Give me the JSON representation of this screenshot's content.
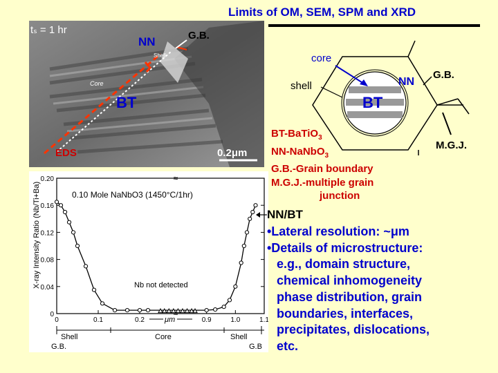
{
  "title": "Limits of OM, SEM, SPM and XRD",
  "micrograph": {
    "ts_label": "tₛ = 1 hr",
    "nn_label": "NN",
    "gb_label": "G.B.",
    "shell_label": "Shell",
    "core_label": "Core",
    "bt_label": "BT",
    "eds_label": "EDS",
    "scale_label": "0.2μm"
  },
  "schematic": {
    "core_label": "core",
    "shell_label": "shell",
    "nn_label": "NN",
    "gb_label": "G.B.",
    "bt_label": "BT",
    "mgj_label": "M.G.J."
  },
  "legend": {
    "line1_main": "BT-BaTiO",
    "line1_sub": "3",
    "line2_main": "NN-NaNbO",
    "line2_sub": "3",
    "line3": "G.B.-Grain boundary",
    "line4": "M.G.J.-multiple grain",
    "line5": "junction"
  },
  "bullets": {
    "heading": "NN/BT",
    "b1": "•Lateral resolution: ~μm",
    "b2": "•Details of microstructure:",
    "b2_lines": [
      "e.g., domain structure,",
      "chemical inhomogeneity",
      "phase distribution, grain",
      "boundaries, interfaces,",
      "precipitates, dislocations,",
      "etc."
    ]
  },
  "chart_data": {
    "type": "scatter",
    "title": "0.10 Mole NaNbO3 (1450°C/1hr)",
    "ylabel": "X-ray Intensity Ratio (Nb/Ti+Ba)",
    "xlabel": "μm",
    "annotation": "Nb not detected",
    "ylim": [
      0,
      0.2
    ],
    "yticks": [
      "0",
      "0.04",
      "0.08",
      "0.12",
      "0.16",
      "0.20"
    ],
    "xticks": [
      "0",
      "0.1",
      "0.2",
      "0.9",
      "1.0",
      "1.1"
    ],
    "bottom_labels": {
      "left_gb": "G.B.",
      "left_shell": "Shell",
      "core": "Core",
      "right_shell": "Shell",
      "right_gb": "G.B"
    },
    "series": [
      {
        "marker": "circle",
        "x": [
          0.0,
          0.01,
          0.02,
          0.03,
          0.04,
          0.05,
          0.07,
          0.09,
          0.11,
          0.14,
          0.17,
          0.2,
          0.22,
          0.9,
          0.93,
          0.96,
          0.98,
          1.0,
          1.02,
          1.03,
          1.04,
          1.05,
          1.06,
          1.07
        ],
        "y": [
          0.165,
          0.16,
          0.15,
          0.135,
          0.12,
          0.1,
          0.07,
          0.035,
          0.015,
          0.005,
          0.005,
          0.005,
          0.005,
          0.005,
          0.006,
          0.01,
          0.02,
          0.04,
          0.075,
          0.1,
          0.12,
          0.14,
          0.15,
          0.16
        ]
      },
      {
        "marker": "triangle",
        "x": [
          0.25,
          0.32,
          0.4,
          0.48,
          0.56,
          0.64,
          0.72,
          0.8,
          0.86
        ],
        "y": [
          0.004,
          0.004,
          0.004,
          0.004,
          0.004,
          0.004,
          0.004,
          0.004,
          0.004
        ]
      }
    ]
  }
}
